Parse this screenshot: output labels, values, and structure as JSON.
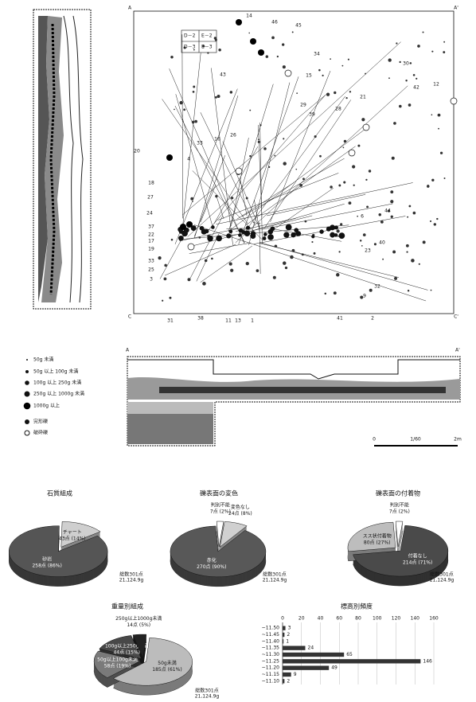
{
  "chart_data": [
    {
      "type": "pie",
      "title": "石質組成",
      "categories": [
        "チャート",
        "砂岩"
      ],
      "values": [
        43,
        258
      ],
      "value_labels": [
        "43点 (14%)",
        "258点 (86%)"
      ],
      "colors": [
        "#cfcfcf",
        "#555555"
      ],
      "note": [
        "総数301点",
        "21,124.9g"
      ]
    },
    {
      "type": "pie",
      "title": "礫表面の変色",
      "categories": [
        "判別不能",
        "変色なし",
        "赤化"
      ],
      "values": [
        7,
        24,
        270
      ],
      "value_labels": [
        "7点 (2%)",
        "24点 (8%)",
        "270点 (90%)"
      ],
      "colors": [
        "#ffffff",
        "#d0d0d0",
        "#585858"
      ],
      "note": [
        "総数301点",
        "21,124.9g"
      ]
    },
    {
      "type": "pie",
      "title": "礫表面の付着物",
      "categories": [
        "判別不能",
        "付着なし",
        "スス状付着物"
      ],
      "values": [
        7,
        214,
        80
      ],
      "value_labels": [
        "7点 (2%)",
        "214点 (71%)",
        "80点 (27%)"
      ],
      "colors": [
        "#ffffff",
        "#4a4a4a",
        "#bdbdbd"
      ],
      "note": [
        "総数301点",
        "21,124.9g"
      ]
    },
    {
      "type": "pie",
      "title": "重量別組成",
      "categories": [
        "50g未満",
        "50g以上100g未満",
        "100g以上250g未満",
        "250g以上1000g未満"
      ],
      "values": [
        185,
        58,
        44,
        14
      ],
      "value_labels": [
        "185点 (61%)",
        "58点 (19%)",
        "44点 (15%)",
        "14点 (5%)"
      ],
      "colors": [
        "#bcbcbc",
        "#7a7a7a",
        "#484848",
        "#222222"
      ],
      "note": [
        "総数301点",
        "21,124.9g"
      ]
    },
    {
      "type": "hbar",
      "title": "標高別頻度",
      "categories": [
        "~11.50",
        "~11.45",
        "~11.40",
        "~11.35",
        "~11.30",
        "~11.25",
        "~11.20",
        "~11.15",
        "~11.10"
      ],
      "values": [
        3,
        2,
        1,
        24,
        65,
        146,
        49,
        9,
        2
      ],
      "color": "#333333",
      "xlim": [
        0,
        160
      ],
      "xticks": [
        0,
        20,
        40,
        60,
        80,
        100,
        120,
        140,
        160
      ]
    }
  ],
  "plan": {
    "labels": [
      "14",
      "46",
      "45",
      "34",
      "15",
      "30",
      "43",
      "42",
      "12",
      "29",
      "21",
      "28",
      "39",
      "20",
      "33",
      "16",
      "26",
      "4",
      "18",
      "27",
      "24",
      "44",
      "6",
      "37",
      "22",
      "17",
      "19",
      "40",
      "23",
      "33",
      "25",
      "3",
      "32",
      "9",
      "31",
      "38",
      "11",
      "13",
      "1",
      "41",
      "2"
    ],
    "grid_labels": [
      "D－2",
      "E－2",
      "D－3",
      "E－3"
    ],
    "section_marks": [
      "A",
      "A'",
      "C",
      "C'"
    ]
  },
  "legend": {
    "items": [
      "50g 未満",
      "50g 以上 100g 未満",
      "100g 以上 250g 未満",
      "250g 以上 1000g 未満",
      "1000g 以上",
      "完形礫",
      "破砕礫"
    ]
  },
  "section": {
    "ends": [
      "A",
      "A'"
    ],
    "scale": "1/60",
    "scale_ticks": [
      "0",
      "2m"
    ]
  }
}
